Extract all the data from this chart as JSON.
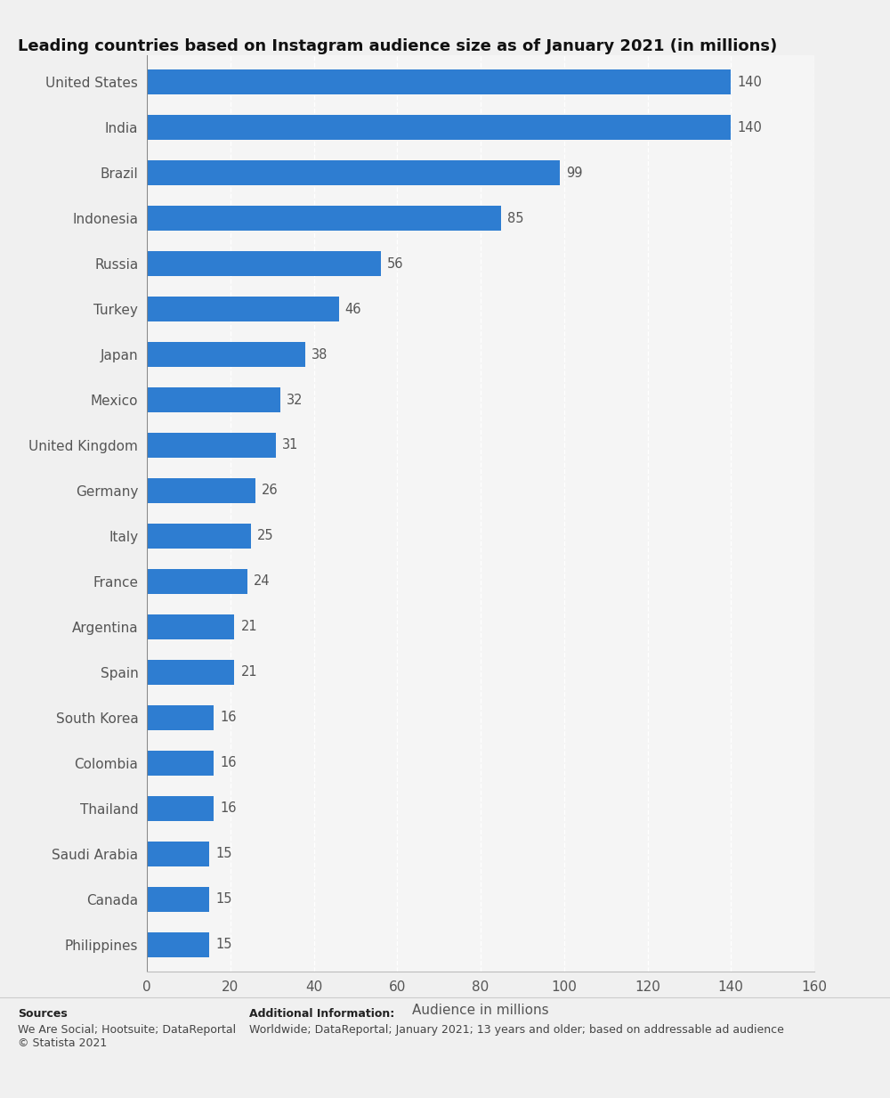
{
  "title": "Leading countries based on Instagram audience size as of January 2021 (in millions)",
  "categories": [
    "United States",
    "India",
    "Brazil",
    "Indonesia",
    "Russia",
    "Turkey",
    "Japan",
    "Mexico",
    "United Kingdom",
    "Germany",
    "Italy",
    "France",
    "Argentina",
    "Spain",
    "South Korea",
    "Colombia",
    "Thailand",
    "Saudi Arabia",
    "Canada",
    "Philippines"
  ],
  "values": [
    140,
    140,
    99,
    85,
    56,
    46,
    38,
    32,
    31,
    26,
    25,
    24,
    21,
    21,
    16,
    16,
    16,
    15,
    15,
    15
  ],
  "bar_color": "#2e7dd1",
  "xlabel": "Audience in millions",
  "xlim": [
    0,
    160
  ],
  "xticks": [
    0,
    20,
    40,
    60,
    80,
    100,
    120,
    140,
    160
  ],
  "background_color": "#f0f0f0",
  "plot_background": "#f5f5f5",
  "title_fontsize": 13,
  "label_fontsize": 11,
  "tick_fontsize": 11,
  "value_fontsize": 10.5,
  "bar_height": 0.55,
  "sources_label": "Sources",
  "sources_body": "We Are Social; Hootsuite; DataReportal\n© Statista 2021",
  "additional_info_title": "Additional Information:",
  "additional_info_text": "Worldwide; DataReportal; January 2021; 13 years and older; based on addressable ad audience"
}
